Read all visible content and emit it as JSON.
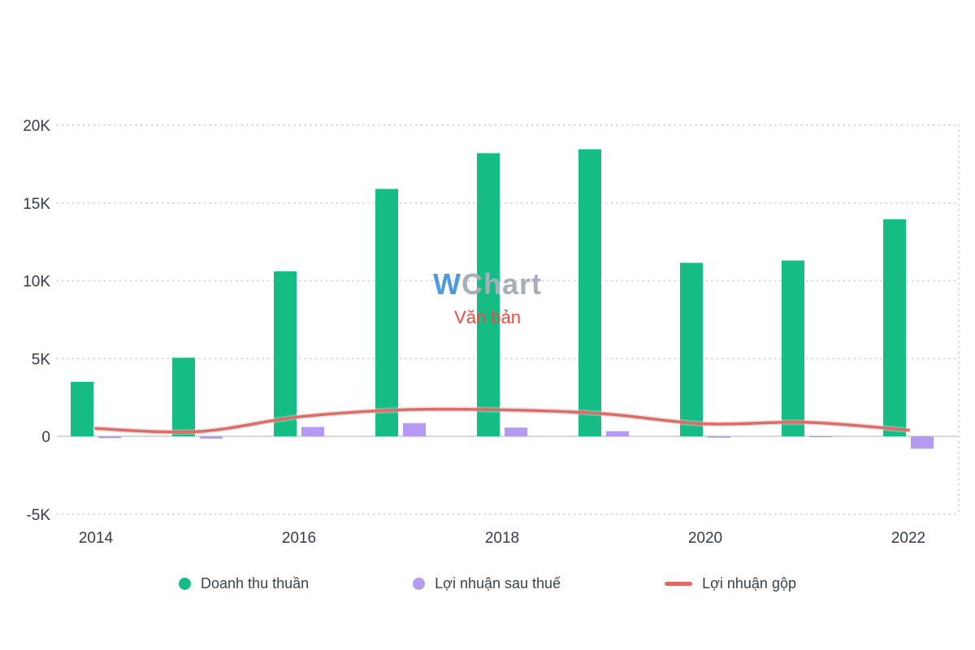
{
  "watermark": {
    "brand_w": "W",
    "brand_rest": "Chart",
    "subtitle": "Văn bản"
  },
  "legend": [
    {
      "label": "Doanh thu thuần",
      "marker": "circle",
      "color": "#15bd85"
    },
    {
      "label": "Lợi nhuận sau thuế",
      "marker": "circle",
      "color": "#b49af3"
    },
    {
      "label": "Lợi nhuận gộp",
      "marker": "line",
      "color": "#e26a66"
    }
  ],
  "chart_data": {
    "type": "bar+line",
    "title": "",
    "categories": [
      2014,
      2015,
      2016,
      2017,
      2018,
      2019,
      2020,
      2021,
      2022
    ],
    "series": [
      {
        "name": "Doanh thu thuần",
        "type": "bar",
        "color": "#15bd85",
        "values": [
          3500,
          5050,
          10600,
          15900,
          18200,
          18450,
          11150,
          11300,
          13950
        ]
      },
      {
        "name": "Lợi nhuận sau thuế",
        "type": "bar",
        "color": "#b49af3",
        "values": [
          -120,
          -150,
          600,
          850,
          560,
          330,
          -90,
          -60,
          -800
        ]
      },
      {
        "name": "Lợi nhuận gộp",
        "type": "line",
        "color": "#e26a66",
        "values": [
          500,
          300,
          1250,
          1700,
          1700,
          1450,
          800,
          900,
          400
        ]
      }
    ],
    "ylim": [
      -5000,
      20000
    ],
    "yticks": [
      20000,
      15000,
      10000,
      5000,
      0,
      -5000
    ],
    "ytick_labels": [
      "20K",
      "15K",
      "10K",
      "5K",
      "0",
      "-5K"
    ],
    "xticks": [
      2014,
      2016,
      2018,
      2020,
      2022
    ],
    "grid": "dotted-horizontal",
    "legend_position": "bottom"
  }
}
